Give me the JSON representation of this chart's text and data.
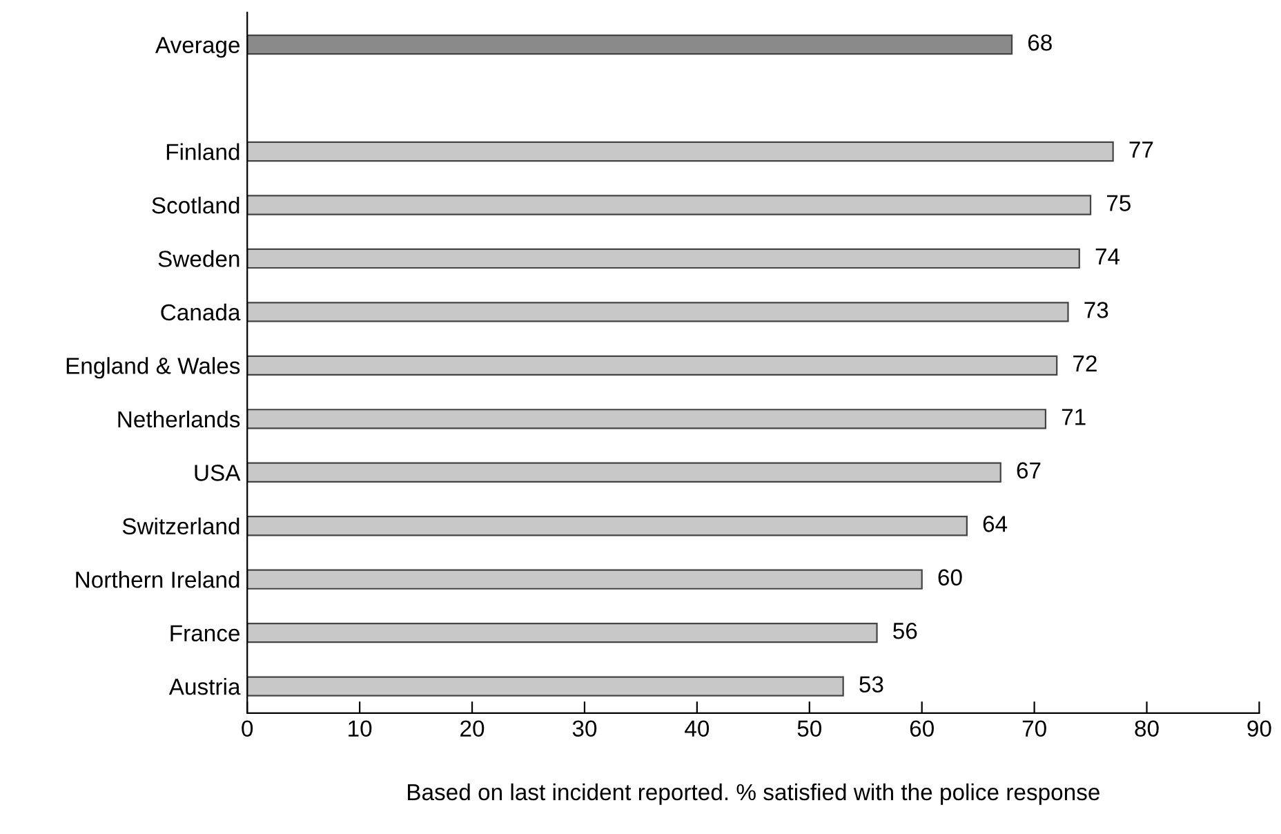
{
  "chart_data": {
    "type": "bar",
    "orientation": "horizontal",
    "xlabel": "Based on last incident reported. % satisfied with the police response",
    "categories": [
      "Average",
      null,
      "Finland",
      "Scotland",
      "Sweden",
      "Canada",
      "England & Wales",
      "Netherlands",
      "USA",
      "Switzerland",
      "Northern Ireland",
      "France",
      "Austria"
    ],
    "values": [
      68,
      null,
      77,
      75,
      74,
      73,
      72,
      71,
      67,
      64,
      60,
      56,
      53
    ],
    "colors": [
      "#8a8a8a",
      "#c8c8c8",
      "#c8c8c8",
      "#c8c8c8",
      "#c8c8c8",
      "#c8c8c8",
      "#c8c8c8",
      "#c8c8c8",
      "#c8c8c8",
      "#c8c8c8",
      "#c8c8c8",
      "#c8c8c8",
      "#c8c8c8"
    ],
    "xlim": [
      0,
      90
    ],
    "xticks": [
      0,
      10,
      20,
      30,
      40,
      50,
      60,
      70,
      80,
      90
    ],
    "data_labels": true,
    "grid": false
  }
}
